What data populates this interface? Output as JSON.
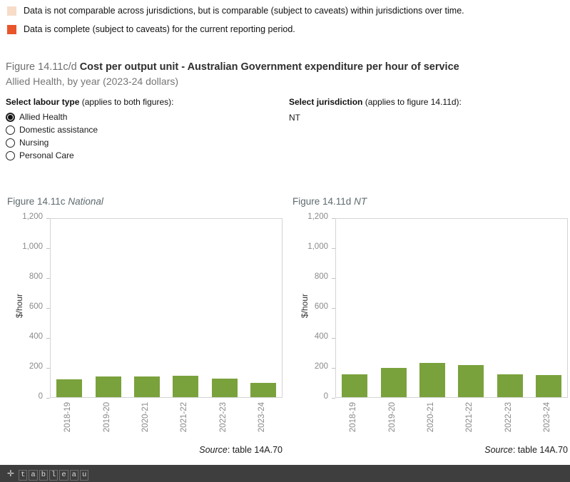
{
  "legend": {
    "items": [
      {
        "color": "#f7dcc8",
        "label": "Data is not comparable across jurisdictions, but is comparable (subject to caveats) within jurisdictions over time."
      },
      {
        "color": "#e8552b",
        "label": "Data is complete (subject to caveats) for the current reporting period."
      }
    ]
  },
  "title": {
    "prefix": "Figure 14.11c/d",
    "main": "Cost per output unit - Australian Government expenditure per hour of service",
    "subtitle": "Allied Health, by year (2023-24 dollars)"
  },
  "controls": {
    "labour_type": {
      "label_bold": "Select labour type",
      "label_rest": " (applies to both figures):",
      "options": [
        "Allied Health",
        "Domestic assistance",
        "Nursing",
        "Personal Care"
      ],
      "selected": "Allied Health"
    },
    "jurisdiction": {
      "label_bold": "Select jurisdiction",
      "label_rest": " (applies to figure 14.11d):",
      "value": "NT"
    }
  },
  "chart_data": [
    {
      "type": "bar",
      "title_prefix": "Figure 14.11c",
      "title_italic": "National",
      "categories": [
        "2018-19",
        "2019-20",
        "2020-21",
        "2021-22",
        "2022-23",
        "2023-24"
      ],
      "values": [
        118,
        138,
        138,
        145,
        122,
        95
      ],
      "ylabel": "$/hour",
      "xlabel": "",
      "ylim": [
        0,
        1200
      ],
      "yticks": [
        0,
        200,
        400,
        600,
        800,
        1000,
        1200
      ],
      "ytick_labels": [
        "0",
        "200",
        "400",
        "600",
        "800",
        "1,000",
        "1,200"
      ],
      "grid": false,
      "legend_position": "none",
      "bar_color": "#7aa23c",
      "source_italic": "Source",
      "source_rest": ": table 14A.70"
    },
    {
      "type": "bar",
      "title_prefix": "Figure 14.11d",
      "title_italic": "NT",
      "categories": [
        "2018-19",
        "2019-20",
        "2020-21",
        "2021-22",
        "2022-23",
        "2023-24"
      ],
      "values": [
        152,
        196,
        230,
        212,
        152,
        148
      ],
      "ylabel": "$/hour",
      "xlabel": "",
      "ylim": [
        0,
        1200
      ],
      "yticks": [
        0,
        200,
        400,
        600,
        800,
        1000,
        1200
      ],
      "ytick_labels": [
        "0",
        "200",
        "400",
        "600",
        "800",
        "1,000",
        "1,200"
      ],
      "grid": false,
      "legend_position": "none",
      "bar_color": "#7aa23c",
      "source_italic": "Source",
      "source_rest": ": table 14A.70"
    }
  ],
  "footer": {
    "logo_plus": "✛",
    "logo_text": "tableau"
  }
}
